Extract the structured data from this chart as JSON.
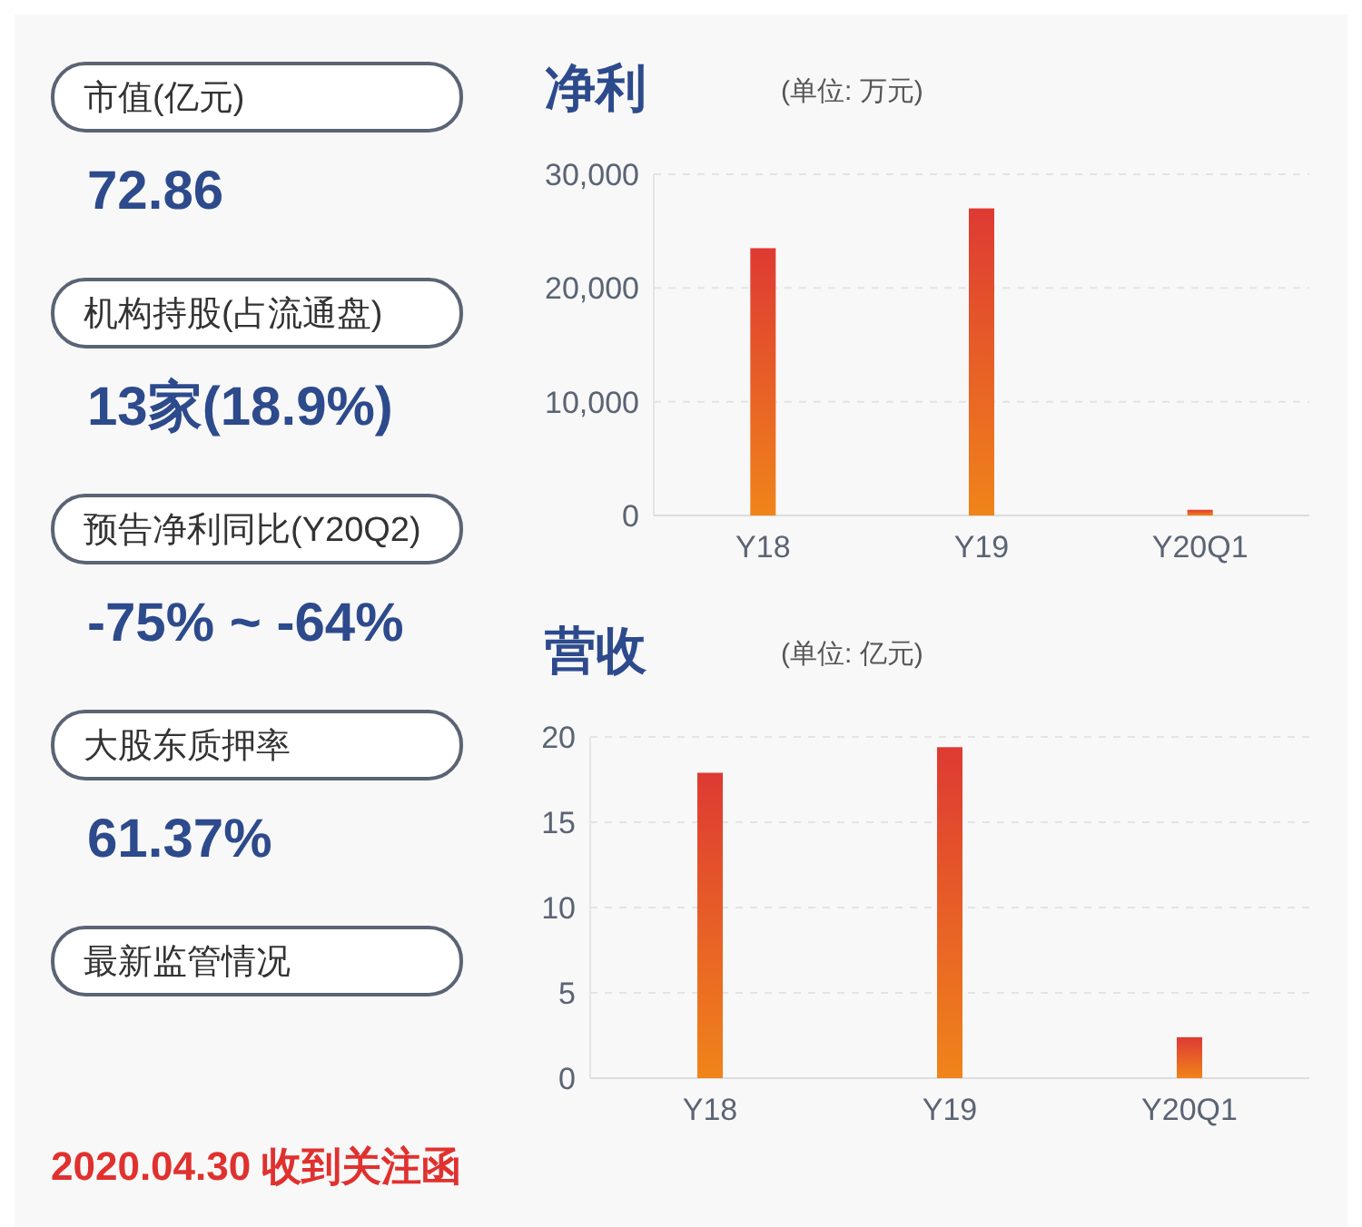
{
  "chart_data": [
    {
      "type": "other",
      "annotations": [
        "市值(亿元)",
        "72.86",
        "机构持股(占流通盘)",
        "13家(18.9%)",
        "预告净利同比(Y20Q2)",
        "-75% ~ -64%",
        "大股东质押率",
        "61.37%",
        "最新监管情况",
        "2020.04.30 收到关注函"
      ]
    },
    {
      "type": "bar",
      "title": "净利",
      "subtitle": "(单位: 万元)",
      "categories": [
        "Y18",
        "Y19",
        "Y20Q1"
      ],
      "series": [
        {
          "color": "#de3a33",
          "values": [
            23500,
            27000,
            500
          ]
        }
      ],
      "ylim": [
        0,
        30000
      ],
      "yticks": [
        {
          "value": 0,
          "label": "0"
        },
        {
          "value": 10000,
          "label": "10,000"
        },
        {
          "value": 20000,
          "label": "20,000"
        },
        {
          "value": 30000,
          "label": "30,000"
        }
      ],
      "grid": "y"
    },
    {
      "type": "bar",
      "title": "营收",
      "subtitle": "(单位: 亿元)",
      "categories": [
        "Y18",
        "Y19",
        "Y20Q1"
      ],
      "series": [
        {
          "color": "#de3a33",
          "values": [
            17.9,
            19.4,
            2.4
          ]
        }
      ],
      "ylim": [
        0,
        20
      ],
      "yticks": [
        0,
        5,
        10,
        15,
        20
      ],
      "grid": "y"
    }
  ]
}
